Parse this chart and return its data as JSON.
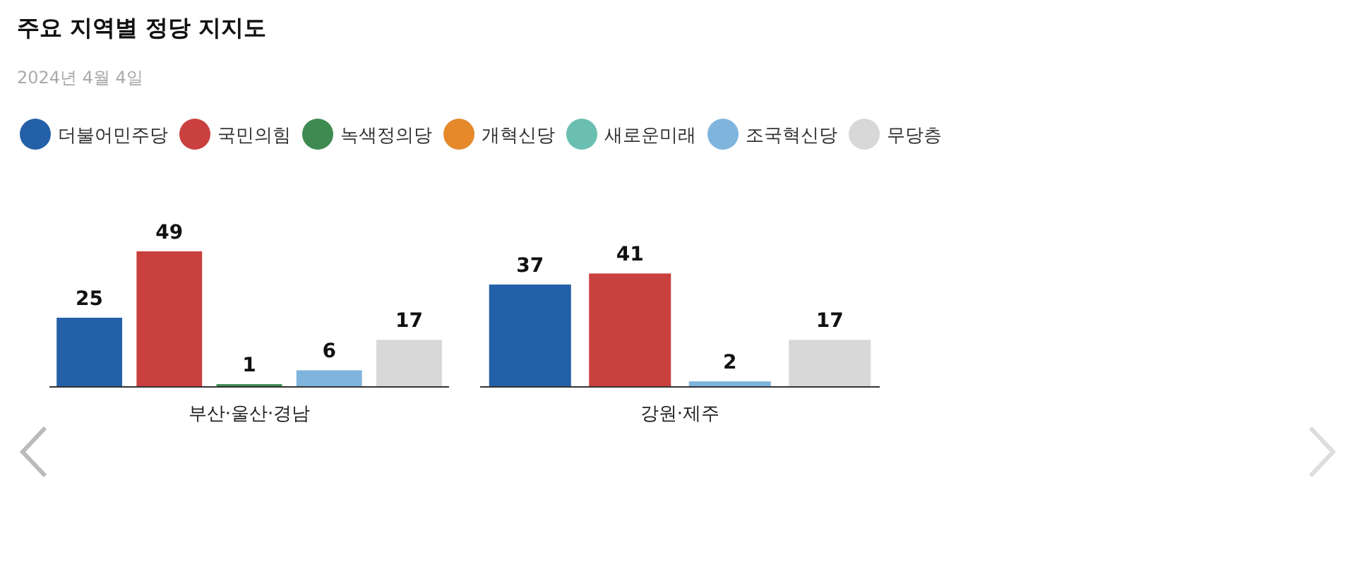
{
  "chart_data": {
    "type": "bar",
    "title": "주요 지역별 정당 지지도",
    "subtitle": "2024년 4월 4일",
    "categories": [
      "부산·울산·경남",
      "강원·제주"
    ],
    "data_labels": true,
    "legend": "top left",
    "series": [
      {
        "name": "더불어민주당",
        "color": "#2460a7",
        "values": [
          25,
          37
        ]
      },
      {
        "name": "국민의힘",
        "color": "#c9403f",
        "values": [
          49,
          41
        ]
      },
      {
        "name": "녹색정의당",
        "color": "#3f8a50",
        "values": [
          1,
          null
        ]
      },
      {
        "name": "개혁신당",
        "color": "#e5892b",
        "values": [
          null,
          null
        ]
      },
      {
        "name": "새로운미래",
        "color": "#6bbfb0",
        "values": [
          null,
          null
        ]
      },
      {
        "name": "조국혁신당",
        "color": "#7fb4dd",
        "values": [
          6,
          2
        ]
      },
      {
        "name": "무당층",
        "color": "#d8d8d8",
        "values": [
          17,
          17
        ]
      }
    ]
  }
}
